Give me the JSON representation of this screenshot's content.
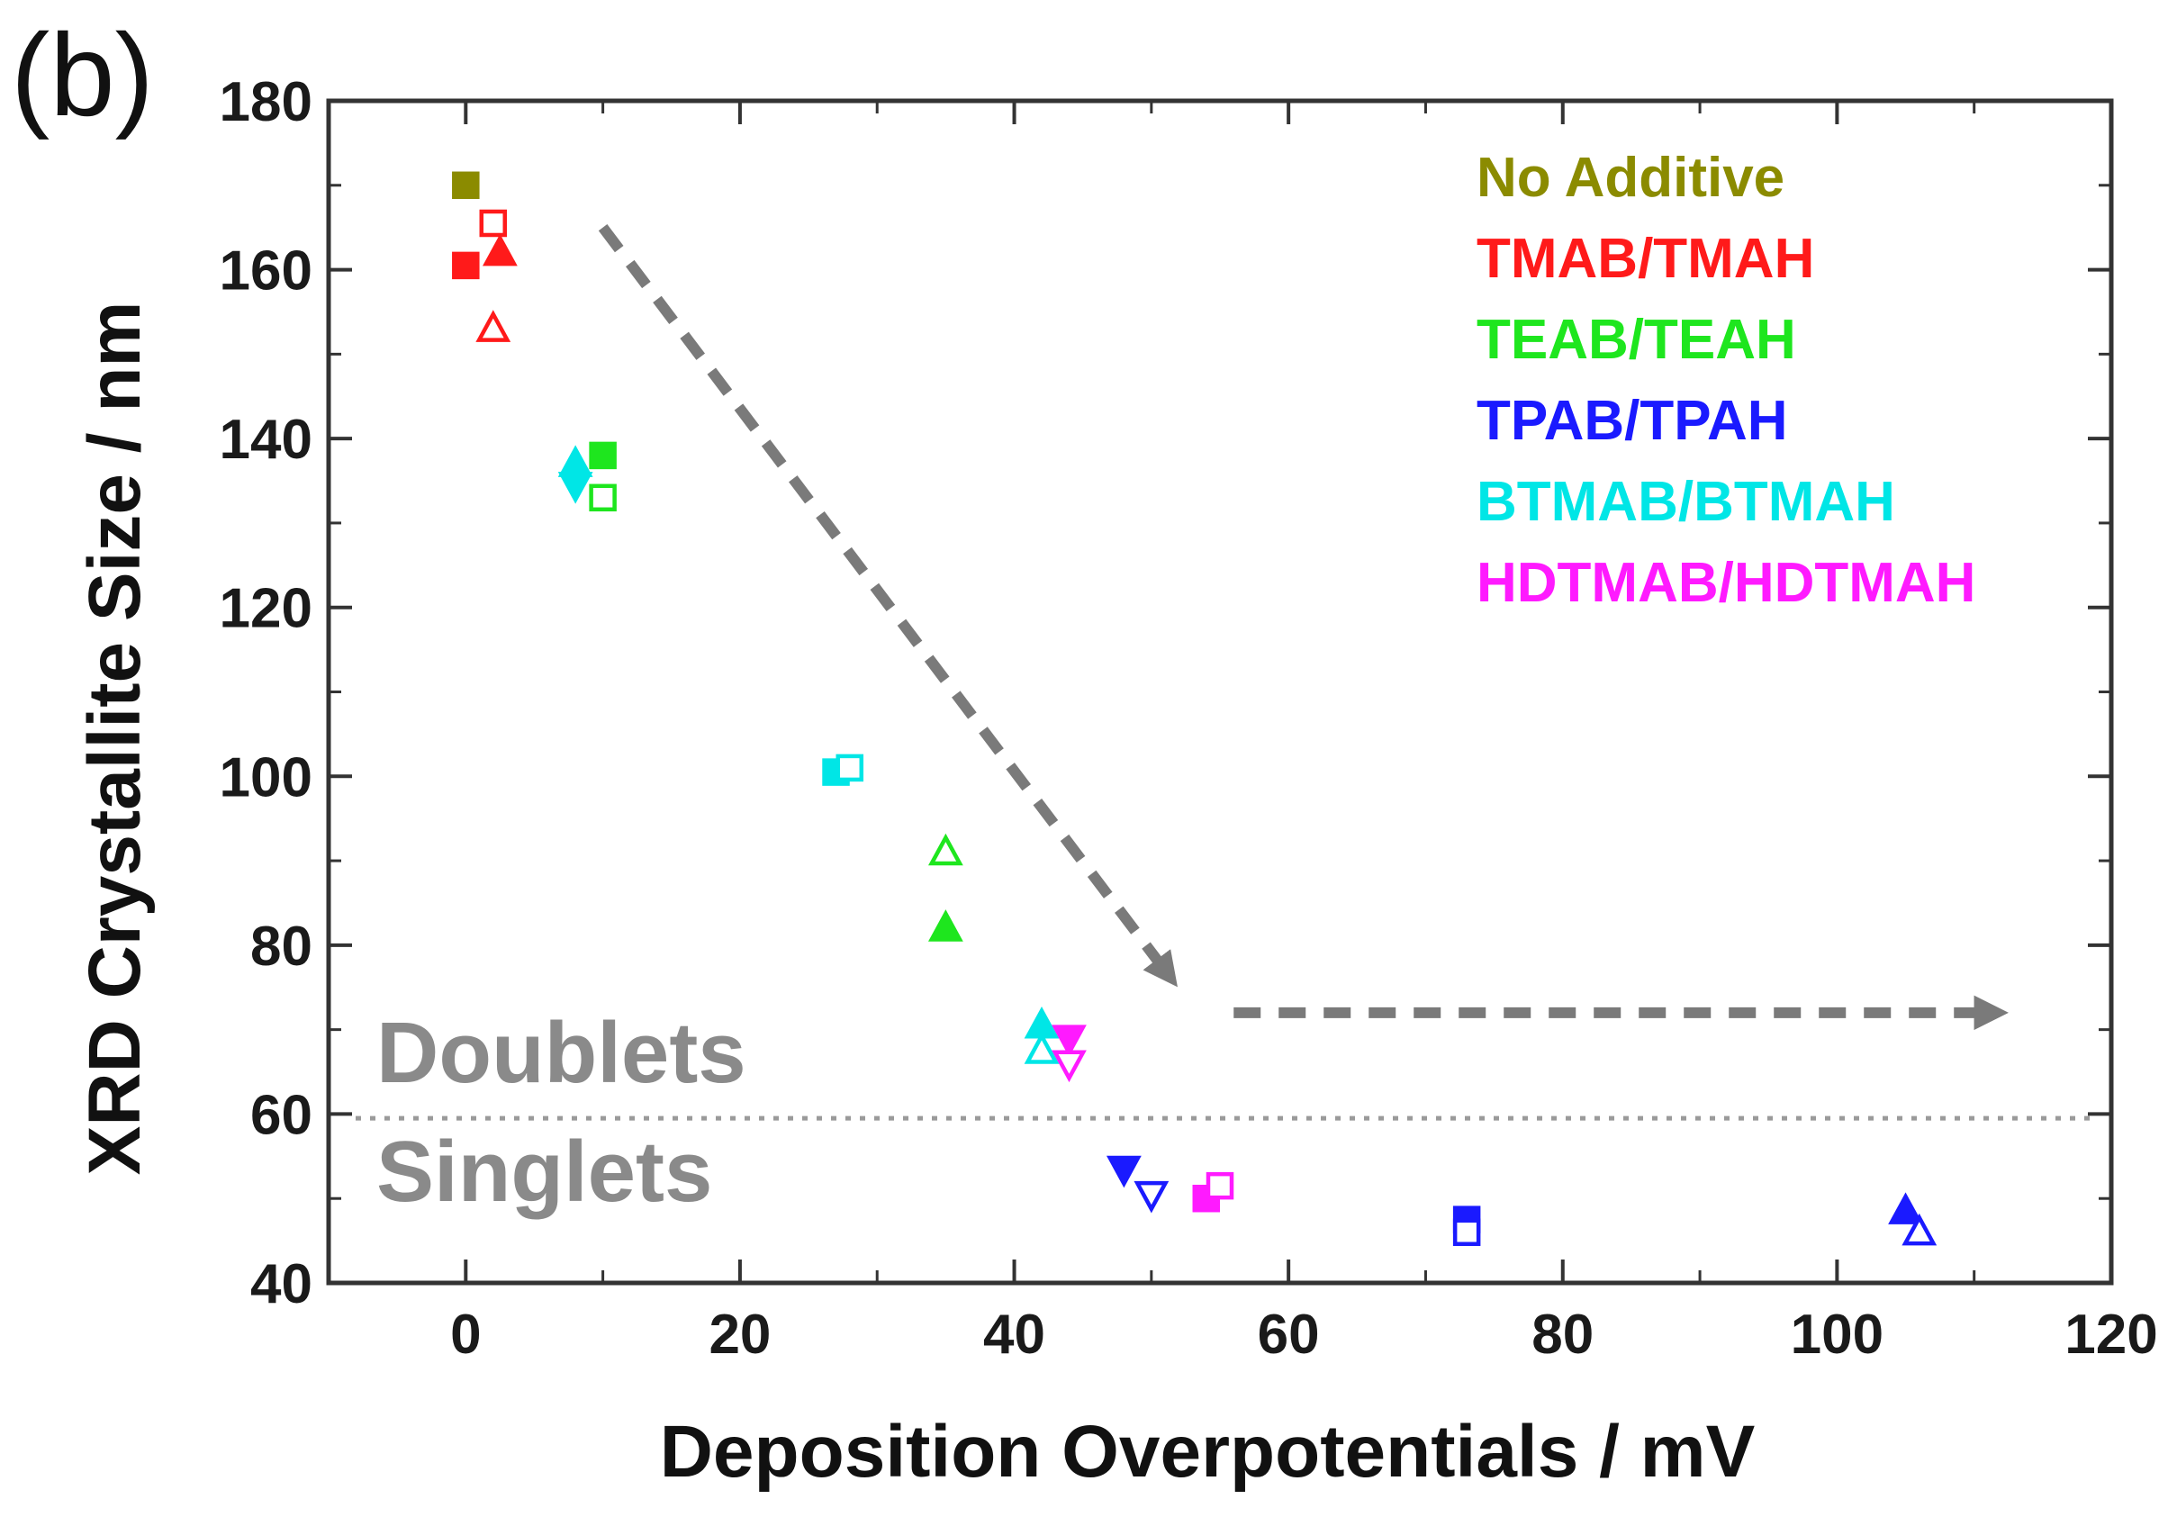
{
  "chart_data": {
    "type": "scatter",
    "panel_label": "(b)",
    "xlabel": "Deposition Overpotentials / mV",
    "ylabel": "XRD Crystallite Size / nm",
    "xlim": [
      -10,
      120
    ],
    "ylim": [
      40,
      180
    ],
    "xticks": [
      0,
      20,
      40,
      60,
      80,
      100,
      120
    ],
    "yticks": [
      40,
      60,
      80,
      100,
      120,
      140,
      160,
      180
    ],
    "grid": false,
    "legend_position": "top-right",
    "threshold": {
      "y": 59.5,
      "above_label": "Doublets",
      "below_label": "Singlets"
    },
    "trend_arrows": [
      {
        "from": [
          10,
          165
        ],
        "to": [
          51,
          77
        ]
      },
      {
        "from": [
          56,
          72
        ],
        "to": [
          111,
          72
        ]
      }
    ],
    "series": [
      {
        "name": "No Additive",
        "color": "#8b8b00",
        "points": [
          {
            "x": 0,
            "y": 170,
            "marker": "square",
            "filled": true
          }
        ]
      },
      {
        "name": "TMAB/TMAH",
        "color": "#ff1a1a",
        "points": [
          {
            "x": 0,
            "y": 160.5,
            "marker": "square",
            "filled": true
          },
          {
            "x": 2,
            "y": 165.5,
            "marker": "square",
            "filled": false
          },
          {
            "x": 2.5,
            "y": 162,
            "marker": "triangle-up",
            "filled": true
          },
          {
            "x": 2,
            "y": 153,
            "marker": "triangle-up",
            "filled": false
          }
        ]
      },
      {
        "name": "TEAB/TEAH",
        "color": "#1ee61e",
        "points": [
          {
            "x": 10,
            "y": 138,
            "marker": "square",
            "filled": true
          },
          {
            "x": 10,
            "y": 133,
            "marker": "square",
            "filled": false
          },
          {
            "x": 35,
            "y": 91,
            "marker": "triangle-up",
            "filled": false
          },
          {
            "x": 35,
            "y": 82,
            "marker": "triangle-up",
            "filled": true
          }
        ]
      },
      {
        "name": "TPAB/TPAH",
        "color": "#1a1aff",
        "points": [
          {
            "x": 48,
            "y": 53.5,
            "marker": "triangle-down",
            "filled": true
          },
          {
            "x": 50,
            "y": 50.5,
            "marker": "triangle-down",
            "filled": false
          },
          {
            "x": 73,
            "y": 47.5,
            "marker": "square",
            "filled": true
          },
          {
            "x": 73,
            "y": 46,
            "marker": "square",
            "filled": false
          },
          {
            "x": 105,
            "y": 48.5,
            "marker": "triangle-up",
            "filled": true
          },
          {
            "x": 106,
            "y": 46,
            "marker": "triangle-up",
            "filled": false
          }
        ]
      },
      {
        "name": "BTMAB/BTMAH",
        "color": "#00e6e6",
        "points": [
          {
            "x": 8,
            "y": 137,
            "marker": "triangle-up",
            "filled": true
          },
          {
            "x": 8,
            "y": 134.5,
            "marker": "triangle-down",
            "filled": true
          },
          {
            "x": 27,
            "y": 100.5,
            "marker": "square",
            "filled": true
          },
          {
            "x": 28,
            "y": 101,
            "marker": "square",
            "filled": false
          },
          {
            "x": 42,
            "y": 70.5,
            "marker": "triangle-up",
            "filled": true
          },
          {
            "x": 42,
            "y": 67.5,
            "marker": "triangle-up",
            "filled": false
          }
        ]
      },
      {
        "name": "HDTMAB/HDTMAH",
        "color": "#ff1aff",
        "points": [
          {
            "x": 44,
            "y": 69,
            "marker": "triangle-down",
            "filled": true
          },
          {
            "x": 44,
            "y": 66,
            "marker": "triangle-down",
            "filled": false
          },
          {
            "x": 54,
            "y": 50,
            "marker": "square",
            "filled": true
          },
          {
            "x": 55,
            "y": 51.5,
            "marker": "square",
            "filled": false
          }
        ]
      }
    ]
  }
}
